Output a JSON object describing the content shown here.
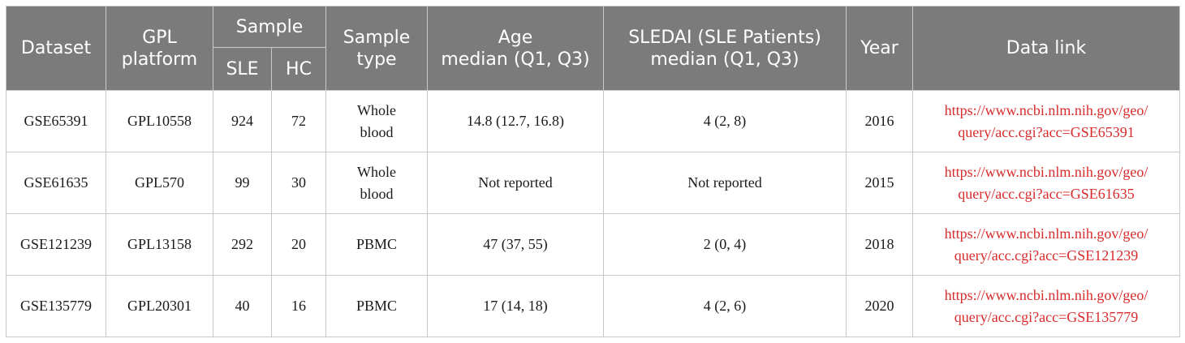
{
  "header": {
    "dataset": "Dataset",
    "gpl_line1": "GPL",
    "gpl_line2": "platform",
    "sample": "Sample",
    "sle": "SLE",
    "hc": "HC",
    "sample_type_line1": "Sample",
    "sample_type_line2": "type",
    "age_line1": "Age",
    "age_line2": "median (Q1, Q3)",
    "sledai_line1": "SLEDAI (SLE Patients)",
    "sledai_line2": "median (Q1, Q3)",
    "year": "Year",
    "link": "Data link"
  },
  "rows": [
    {
      "dataset": "GSE65391",
      "gpl": "GPL10558",
      "sle": "924",
      "hc": "72",
      "type_line1": "Whole",
      "type_line2": "blood",
      "age": "14.8 (12.7, 16.8)",
      "sledai": "4 (2, 8)",
      "year": "2016",
      "link_line1": "https://www.ncbi.nlm.nih.gov/geo/",
      "link_line2": "query/acc.cgi?acc=GSE65391"
    },
    {
      "dataset": "GSE61635",
      "gpl": "GPL570",
      "sle": "99",
      "hc": "30",
      "type_line1": "Whole",
      "type_line2": "blood",
      "age": "Not reported",
      "sledai": "Not reported",
      "year": "2015",
      "link_line1": "https://www.ncbi.nlm.nih.gov/geo/",
      "link_line2": "query/acc.cgi?acc=GSE61635"
    },
    {
      "dataset": "GSE121239",
      "gpl": "GPL13158",
      "sle": "292",
      "hc": "20",
      "type_line1": "PBMC",
      "type_line2": "",
      "age": "47 (37, 55)",
      "sledai": "2 (0, 4)",
      "year": "2018",
      "link_line1": "https://www.ncbi.nlm.nih.gov/geo/",
      "link_line2": "query/acc.cgi?acc=GSE121239"
    },
    {
      "dataset": "GSE135779",
      "gpl": "GPL20301",
      "sle": "40",
      "hc": "16",
      "type_line1": "PBMC",
      "type_line2": "",
      "age": "17 (14, 18)",
      "sledai": "4 (2, 6)",
      "year": "2020",
      "link_line1": "https://www.ncbi.nlm.nih.gov/geo/",
      "link_line2": "query/acc.cgi?acc=GSE135779"
    }
  ],
  "colors": {
    "header_bg": "#7b7b7b",
    "header_text": "#ffffff",
    "link_text": "#d92b2b",
    "border": "#c9c9c9"
  }
}
